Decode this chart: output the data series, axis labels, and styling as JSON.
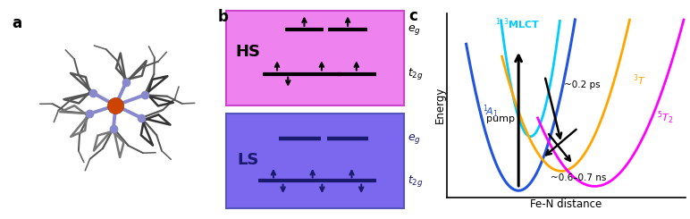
{
  "panel_a_label": "a",
  "panel_b_label": "b",
  "panel_c_label": "c",
  "hs_bg": "#EE82EE",
  "hs_border": "#CC44CC",
  "ls_bg": "#7B68EE",
  "ls_border": "#5555BB",
  "hs_label": "HS",
  "ls_label": "LS",
  "curve_1A1_color": "#2255DD",
  "curve_MLCT_color": "#00CCFF",
  "curve_3T_color": "#FFA500",
  "curve_5T2_color": "#FF00FF",
  "annotation_02ps": "~0.2 ps",
  "annotation_06ns": "~0.6–0.7 ns",
  "pump_label": "pump",
  "xlabel": "Fe-N distance",
  "ylabel": "Energy",
  "fe_color": "#CC4400",
  "n_color": "#8888CC",
  "bond_color": "#8888CC",
  "carbon_color": "#888888",
  "carbon_dark": "#444444"
}
